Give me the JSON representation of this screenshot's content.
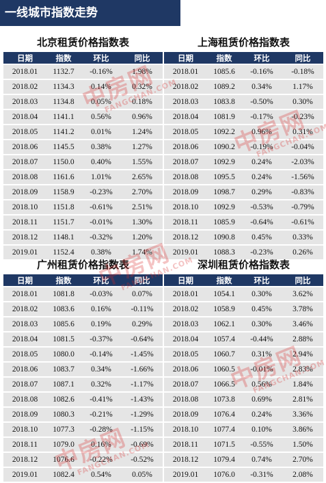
{
  "page_title": "一线城市指数走势",
  "columns": [
    "日期",
    "指数",
    "环比",
    "同比"
  ],
  "watermark": {
    "cn": "中房网",
    "en": "FANGCHAN.COM",
    "color": "#d62828"
  },
  "accent_color": "#1f3864",
  "tables": [
    {
      "title": "北京租赁价格指数表",
      "rows": [
        [
          "2018.01",
          "1132.7",
          "-0.16%",
          "1.98%"
        ],
        [
          "2018.02",
          "1134.3",
          "0.14%",
          "0.32%"
        ],
        [
          "2018.03",
          "1134.8",
          "0.05%",
          "0.18%"
        ],
        [
          "2018.04",
          "1141.1",
          "0.56%",
          "0.96%"
        ],
        [
          "2018.05",
          "1141.2",
          "0.01%",
          "1.24%"
        ],
        [
          "2018.06",
          "1145.5",
          "0.38%",
          "1.27%"
        ],
        [
          "2018.07",
          "1150.0",
          "0.40%",
          "1.55%"
        ],
        [
          "2018.08",
          "1161.6",
          "1.01%",
          "2.65%"
        ],
        [
          "2018.09",
          "1158.9",
          "-0.23%",
          "2.70%"
        ],
        [
          "2018.10",
          "1151.8",
          "-0.61%",
          "2.51%"
        ],
        [
          "2018.11",
          "1151.7",
          "-0.01%",
          "1.30%"
        ],
        [
          "2018.12",
          "1148.1",
          "-0.32%",
          "1.20%"
        ],
        [
          "2019.01",
          "1152.4",
          "0.38%",
          "1.74%"
        ]
      ]
    },
    {
      "title": "上海租赁价格指数表",
      "rows": [
        [
          "2018.01",
          "1085.6",
          "-0.16%",
          "-0.18%"
        ],
        [
          "2018.02",
          "1089.2",
          "0.34%",
          "1.17%"
        ],
        [
          "2018.03",
          "1083.8",
          "-0.50%",
          "0.30%"
        ],
        [
          "2018.04",
          "1081.9",
          "-0.17%",
          "-0.23%"
        ],
        [
          "2018.05",
          "1092.2",
          "0.96%",
          "0.31%"
        ],
        [
          "2018.06",
          "1090.2",
          "-0.19%",
          "-0.04%"
        ],
        [
          "2018.07",
          "1092.9",
          "0.24%",
          "-2.03%"
        ],
        [
          "2018.08",
          "1095.5",
          "0.24%",
          "-1.56%"
        ],
        [
          "2018.09",
          "1098.7",
          "0.29%",
          "-0.83%"
        ],
        [
          "2018.10",
          "1092.9",
          "-0.53%",
          "-0.79%"
        ],
        [
          "2018.11",
          "1085.9",
          "-0.64%",
          "-0.61%"
        ],
        [
          "2018.12",
          "1090.8",
          "0.45%",
          "0.33%"
        ],
        [
          "2019.01",
          "1088.3",
          "-0.23%",
          "0.26%"
        ]
      ]
    },
    {
      "title": "广州租赁价格指数表",
      "rows": [
        [
          "2018.01",
          "1081.8",
          "-0.03%",
          "0.07%"
        ],
        [
          "2018.02",
          "1083.6",
          "0.16%",
          "-0.11%"
        ],
        [
          "2018.03",
          "1085.6",
          "0.19%",
          "0.29%"
        ],
        [
          "2018.04",
          "1081.5",
          "-0.37%",
          "-0.64%"
        ],
        [
          "2018.05",
          "1080.0",
          "-0.14%",
          "-1.45%"
        ],
        [
          "2018.06",
          "1083.7",
          "0.34%",
          "-1.66%"
        ],
        [
          "2018.07",
          "1087.1",
          "0.32%",
          "-1.17%"
        ],
        [
          "2018.08",
          "1082.6",
          "-0.41%",
          "-1.43%"
        ],
        [
          "2018.09",
          "1080.3",
          "-0.21%",
          "-1.29%"
        ],
        [
          "2018.10",
          "1077.3",
          "-0.28%",
          "-1.15%"
        ],
        [
          "2018.11",
          "1079.0",
          "0.16%",
          "-0.69%"
        ],
        [
          "2018.12",
          "1076.6",
          "-0.22%",
          "-0.52%"
        ],
        [
          "2019.01",
          "1082.4",
          "0.54%",
          "0.05%"
        ]
      ]
    },
    {
      "title": "深圳租赁价格指数表",
      "rows": [
        [
          "2018.01",
          "1054.1",
          "0.30%",
          "3.62%"
        ],
        [
          "2018.02",
          "1058.9",
          "0.45%",
          "3.78%"
        ],
        [
          "2018.03",
          "1062.1",
          "0.30%",
          "3.46%"
        ],
        [
          "2018.04",
          "1057.4",
          "-0.44%",
          "2.88%"
        ],
        [
          "2018.05",
          "1060.7",
          "0.31%",
          "2.94%"
        ],
        [
          "2018.06",
          "1060.5",
          "-0.01%",
          "2.83%"
        ],
        [
          "2018.07",
          "1066.5",
          "0.56%",
          "1.84%"
        ],
        [
          "2018.08",
          "1073.8",
          "0.69%",
          "2.81%"
        ],
        [
          "2018.09",
          "1076.4",
          "0.24%",
          "3.36%"
        ],
        [
          "2018.10",
          "1077.4",
          "0.10%",
          "3.86%"
        ],
        [
          "2018.11",
          "1071.5",
          "-0.55%",
          "1.50%"
        ],
        [
          "2018.12",
          "1079.4",
          "0.74%",
          "2.70%"
        ],
        [
          "2019.01",
          "1076.0",
          "-0.31%",
          "2.08%"
        ]
      ]
    }
  ]
}
